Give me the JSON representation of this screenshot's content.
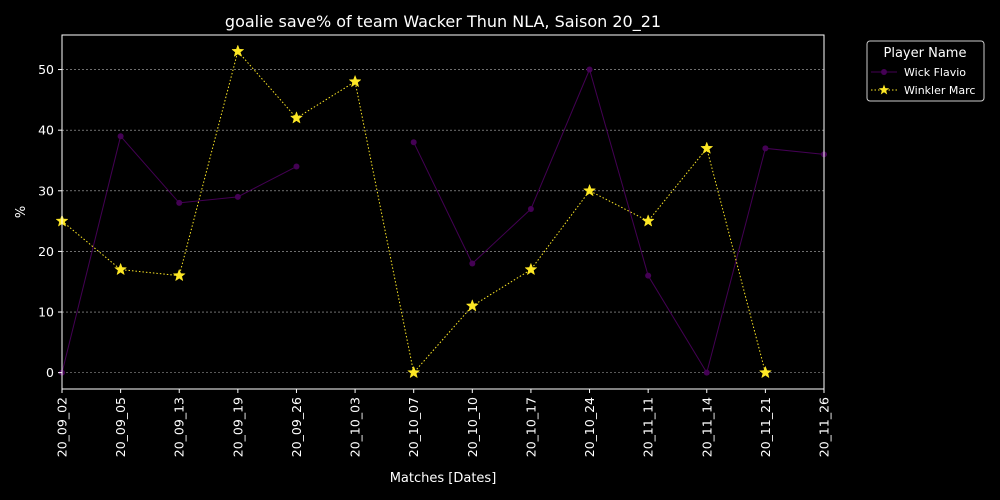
{
  "chart_data": {
    "type": "line",
    "title": "goalie save% of team Wacker Thun NLA, Saison 20_21",
    "xlabel": "Matches [Dates]",
    "ylabel": "%",
    "categories": [
      "20_09_02",
      "20_09_05",
      "20_09_13",
      "20_09_19",
      "20_09_26",
      "20_10_03",
      "20_10_07",
      "20_10_10",
      "20_10_17",
      "20_10_24",
      "20_11_11",
      "20_11_14",
      "20_11_21",
      "20_11_26"
    ],
    "yticks": [
      0,
      10,
      20,
      30,
      40,
      50
    ],
    "ylim": [
      -2.7,
      55.7
    ],
    "grid": true,
    "legend": {
      "title": "Player Name",
      "position": "outside-top-right"
    },
    "series": [
      {
        "name": "Wick Flavio",
        "color": "#440154",
        "marker": "circle",
        "linestyle": "solid",
        "values": [
          0,
          39,
          28,
          29,
          34,
          null,
          38,
          18,
          27,
          50,
          16,
          0,
          37,
          36
        ]
      },
      {
        "name": "Winkler Marc",
        "color": "#fde725",
        "marker": "star",
        "linestyle": "dotted",
        "values": [
          25,
          17,
          16,
          53,
          42,
          48,
          0,
          11,
          17,
          30,
          25,
          37,
          0,
          null
        ]
      }
    ]
  }
}
